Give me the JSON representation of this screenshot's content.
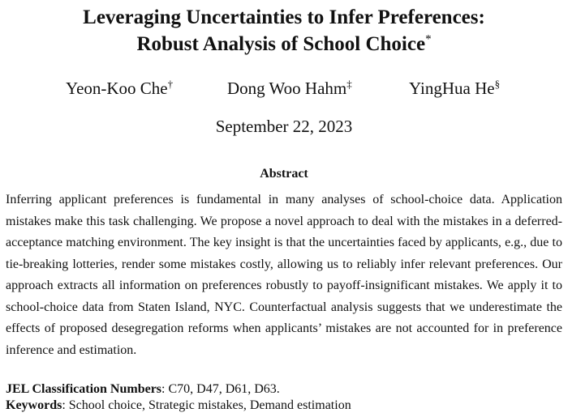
{
  "paper": {
    "title_line1": "Leveraging Uncertainties to Infer Preferences:",
    "title_line2": "Robust Analysis of School Choice",
    "title_mark": "*",
    "authors": [
      {
        "name": "Yeon-Koo Che",
        "mark": "†"
      },
      {
        "name": "Dong Woo Hahm",
        "mark": "‡"
      },
      {
        "name": "YingHua He",
        "mark": "§"
      }
    ],
    "date": "September 22, 2023",
    "abstract_heading": "Abstract",
    "abstract_text": "Inferring applicant preferences is fundamental in many analyses of school-choice data. Application mistakes make this task challenging. We propose a novel approach to deal with the mistakes in a deferred-acceptance matching environment. The key insight is that the uncertainties faced by applicants, e.g., due to tie-breaking lotteries, render some mistakes costly, allowing us to reliably infer relevant preferences. Our approach extracts all information on preferences robustly to payoff-insignificant mistakes. We apply it to school-choice data from Staten Island, NYC. Counterfactual analysis suggests that we underestimate the effects of proposed desegregation reforms when applicants’ mistakes are not accounted for in preference inference and estimation.",
    "jel_label": "JEL Classification Numbers",
    "jel_value": ": C70, D47, D61, D63.",
    "keywords_label": "Keywords",
    "keywords_value": ": School choice, Strategic mistakes, Demand estimation"
  }
}
